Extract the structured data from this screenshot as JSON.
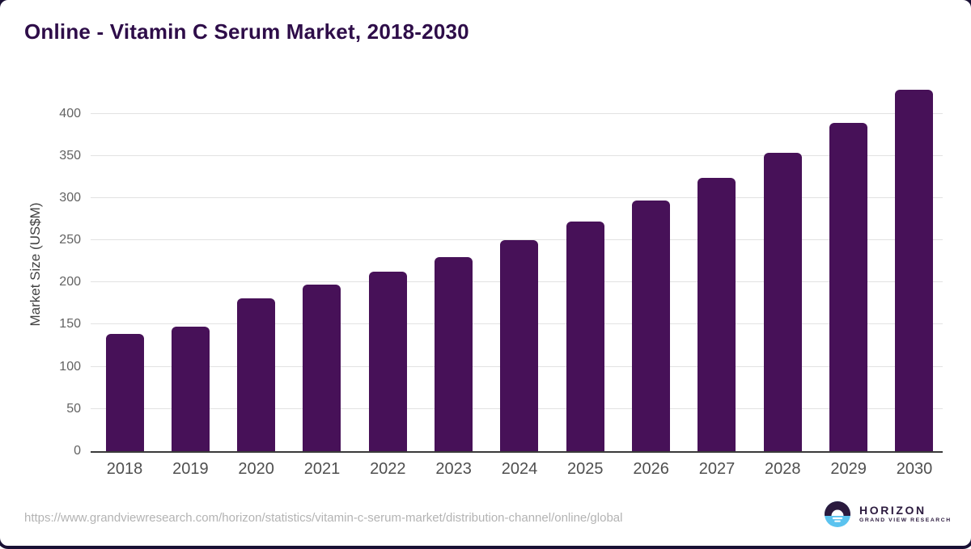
{
  "chart_data": {
    "type": "bar",
    "title": "Online - Vitamin C Serum Market, 2018-2030",
    "categories": [
      "2018",
      "2019",
      "2020",
      "2021",
      "2022",
      "2023",
      "2024",
      "2025",
      "2026",
      "2027",
      "2028",
      "2029",
      "2030"
    ],
    "values": [
      139,
      148,
      181,
      197,
      213,
      230,
      250,
      272,
      297,
      324,
      354,
      389,
      428
    ],
    "xlabel": "",
    "ylabel": "Market Size (US$M)",
    "yticks": [
      0,
      50,
      100,
      150,
      200,
      250,
      300,
      350,
      400
    ],
    "ylim": [
      0,
      434
    ],
    "grid": "horizontal",
    "legend": "none",
    "bar_color": "#471158",
    "grid_color": "#e2e2e2",
    "axis_color": "#3a3a3a",
    "title_color": "#2e0d49"
  },
  "footer": {
    "source_url": "https://www.grandviewresearch.com/horizon/statistics/vitamin-c-serum-market/distribution-channel/online/global",
    "logo": {
      "name": "HORIZON",
      "subtitle": "GRAND VIEW RESEARCH",
      "dark_color": "#2b1a3e",
      "blue_color": "#5bc3ef"
    }
  }
}
